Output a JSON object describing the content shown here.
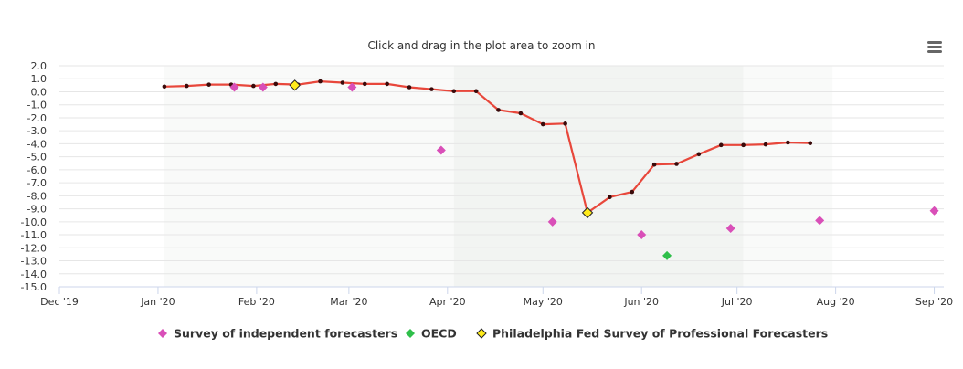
{
  "subtitle": "Click and drag in the plot area to zoom in",
  "menu_icon": "hamburger-menu-icon",
  "chart_data": {
    "type": "line",
    "title": "",
    "xlabel": "",
    "ylabel": "",
    "ylim": [
      -15,
      2
    ],
    "yticks": [
      2.0,
      1.0,
      0.0,
      -1.0,
      -2.0,
      -3.0,
      -4.0,
      -5.0,
      -6.0,
      -7.0,
      -8.0,
      -9.0,
      -10.0,
      -11.0,
      -12.0,
      -13.0,
      -14.0,
      -15.0
    ],
    "y_tick_labels": [
      "2.0",
      "1.0",
      "0.0",
      "-1.0",
      "-2.0",
      "-3.0",
      "-4.0",
      "-5.0",
      "-6.0",
      "-7.0",
      "-8.0",
      "-9.0",
      "-10.0",
      "-11.0",
      "-12.0",
      "-13.0",
      "-14.0",
      "-15.0"
    ],
    "xlim": [
      "2019-12-01",
      "2020-09-04"
    ],
    "x_ticks": [
      {
        "date": "2019-12-01",
        "label": "Dec '19"
      },
      {
        "date": "2020-01-01",
        "label": "Jan '20"
      },
      {
        "date": "2020-02-01",
        "label": "Feb '20"
      },
      {
        "date": "2020-03-01",
        "label": "Mar '20"
      },
      {
        "date": "2020-04-01",
        "label": "Apr '20"
      },
      {
        "date": "2020-05-01",
        "label": "May '20"
      },
      {
        "date": "2020-06-01",
        "label": "Jun '20"
      },
      {
        "date": "2020-07-01",
        "label": "Jul '20"
      },
      {
        "date": "2020-08-01",
        "label": "Aug '20"
      },
      {
        "date": "2020-09-01",
        "label": "Sep '20"
      }
    ],
    "plot_bands": [
      {
        "from": "2020-01-03",
        "to": "2020-04-03",
        "color": "#f9faf9"
      },
      {
        "from": "2020-04-03",
        "to": "2020-07-03",
        "color": "#f2f4f2"
      },
      {
        "from": "2020-07-03",
        "to": "2020-07-31",
        "color": "#f9faf9"
      }
    ],
    "grid": true,
    "legend_position": "bottom",
    "line_series": {
      "name": "",
      "color": "#e8473b",
      "marker_color": "#3a0a0a",
      "points": [
        {
          "x": "2020-01-03",
          "y": 0.4
        },
        {
          "x": "2020-01-10",
          "y": 0.45
        },
        {
          "x": "2020-01-17",
          "y": 0.55
        },
        {
          "x": "2020-01-24",
          "y": 0.55
        },
        {
          "x": "2020-01-31",
          "y": 0.45
        },
        {
          "x": "2020-02-07",
          "y": 0.6
        },
        {
          "x": "2020-02-14",
          "y": 0.55
        },
        {
          "x": "2020-02-21",
          "y": 0.8
        },
        {
          "x": "2020-02-28",
          "y": 0.7
        },
        {
          "x": "2020-03-06",
          "y": 0.6
        },
        {
          "x": "2020-03-13",
          "y": 0.6
        },
        {
          "x": "2020-03-20",
          "y": 0.35
        },
        {
          "x": "2020-03-27",
          "y": 0.2
        },
        {
          "x": "2020-04-03",
          "y": 0.05
        },
        {
          "x": "2020-04-10",
          "y": 0.05
        },
        {
          "x": "2020-04-17",
          "y": -1.4
        },
        {
          "x": "2020-04-24",
          "y": -1.65
        },
        {
          "x": "2020-05-01",
          "y": -2.5
        },
        {
          "x": "2020-05-08",
          "y": -2.45
        },
        {
          "x": "2020-05-15",
          "y": -9.3
        },
        {
          "x": "2020-05-22",
          "y": -8.1
        },
        {
          "x": "2020-05-29",
          "y": -7.7
        },
        {
          "x": "2020-06-05",
          "y": -5.6
        },
        {
          "x": "2020-06-12",
          "y": -5.55
        },
        {
          "x": "2020-06-19",
          "y": -4.8
        },
        {
          "x": "2020-06-26",
          "y": -4.1
        },
        {
          "x": "2020-07-03",
          "y": -4.1
        },
        {
          "x": "2020-07-10",
          "y": -4.05
        },
        {
          "x": "2020-07-17",
          "y": -3.9
        },
        {
          "x": "2020-07-24",
          "y": -3.95
        }
      ]
    },
    "series": [
      {
        "name": "Survey of independent forecasters",
        "type": "scatter",
        "color": "#d94fb8",
        "points": [
          {
            "x": "2020-01-25",
            "y": 0.35
          },
          {
            "x": "2020-02-03",
            "y": 0.35
          },
          {
            "x": "2020-03-02",
            "y": 0.35
          },
          {
            "x": "2020-03-30",
            "y": -4.5
          },
          {
            "x": "2020-05-04",
            "y": -10.0
          },
          {
            "x": "2020-06-01",
            "y": -11.0
          },
          {
            "x": "2020-06-29",
            "y": -10.5
          },
          {
            "x": "2020-07-27",
            "y": -9.9
          },
          {
            "x": "2020-09-01",
            "y": -9.15
          }
        ]
      },
      {
        "name": "OECD",
        "type": "scatter",
        "color": "#2fbf4a",
        "points": [
          {
            "x": "2020-06-09",
            "y": -12.6
          }
        ]
      },
      {
        "name": "Philadelphia Fed Survey of Professional Forecasters",
        "type": "scatter",
        "color": "#ffeb1a",
        "points": [
          {
            "x": "2020-02-13",
            "y": 0.5
          },
          {
            "x": "2020-05-15",
            "y": -9.3
          }
        ]
      }
    ]
  }
}
